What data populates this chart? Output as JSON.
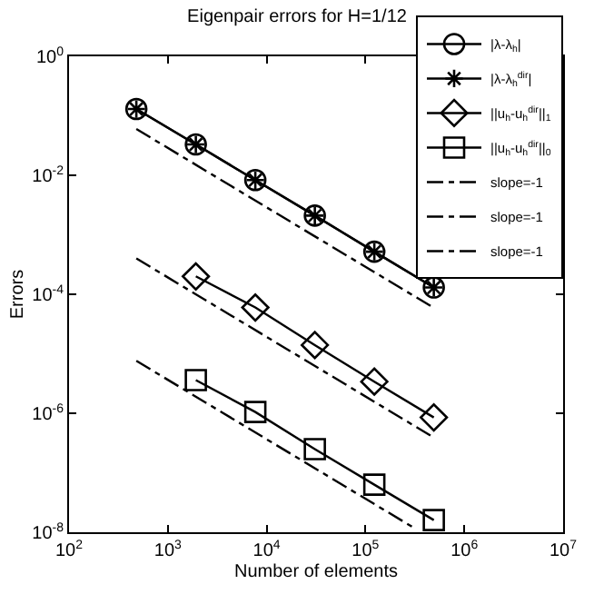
{
  "chart_data": {
    "type": "line",
    "title": "Eigenpair errors for H=1/12",
    "xlabel": "Number of elements",
    "ylabel": "Errors",
    "log": "xy",
    "legend": "top right",
    "xlim": [
      100,
      10000000
    ],
    "ylim": [
      1e-08,
      1
    ],
    "xticks": [
      {
        "value": 100,
        "label": "10$^{2}$"
      },
      {
        "value": 1000,
        "label": "10$^{3}$"
      },
      {
        "value": 10000,
        "label": "10$^{4}$"
      },
      {
        "value": 100000,
        "label": "10$^{5}$"
      },
      {
        "value": 1000000,
        "label": "10$^{6}$"
      },
      {
        "value": 10000000,
        "label": "10$^{7}$"
      }
    ],
    "yticks": [
      {
        "value": 1,
        "label": "10$^{0}$"
      },
      {
        "value": 0.01,
        "label": "10$^{-2}$"
      },
      {
        "value": 0.0001,
        "label": "10$^{-4}$"
      },
      {
        "value": 1e-06,
        "label": "10$^{-6}$"
      },
      {
        "value": 1e-08,
        "label": "10$^{-8}$"
      }
    ],
    "series": [
      {
        "name": "|λ-λ$_{h}$|",
        "color": "#000000",
        "marker": "circle",
        "line_style": "solid",
        "x": [
          480,
          1920,
          7680,
          30720,
          122880,
          491520
        ],
        "values": [
          0.13,
          0.033,
          0.0083,
          0.0021,
          0.00052,
          0.00013
        ]
      },
      {
        "name": "|λ-λ$_{h}$$^{dir}$|",
        "color": "#000000",
        "marker": "cross",
        "line_style": "solid",
        "x": [
          480,
          1920,
          7680,
          30720,
          122880,
          491520
        ],
        "values": [
          0.13,
          0.033,
          0.0083,
          0.0021,
          0.00052,
          0.00013
        ]
      },
      {
        "name": "||u$_{h}$-u$_{h}$$^{dir}$||$_{1}$",
        "color": "#000000",
        "marker": "diamond",
        "line_style": "solid",
        "x": [
          1920,
          7680,
          30720,
          122880,
          491520
        ],
        "values": [
          0.0002,
          6e-05,
          1.4e-05,
          3.4e-06,
          8.5e-07
        ]
      },
      {
        "name": "||u$_{h}$-u$_{h}$$^{dir}$||$_{0}$",
        "color": "#000000",
        "marker": "square",
        "line_style": "solid",
        "x": [
          1920,
          7680,
          30720,
          122880,
          491520
        ],
        "values": [
          3.6e-06,
          1.05e-06,
          2.5e-07,
          6.3e-08,
          1.6e-08
        ]
      },
      {
        "name": "slope=-1",
        "color": "#000000",
        "marker": "none",
        "line_style": "dashdot",
        "x": [
          480,
          491520
        ],
        "values": [
          0.06,
          5.9e-05
        ]
      },
      {
        "name": "slope=-1",
        "color": "#000000",
        "marker": "none",
        "line_style": "dashdot",
        "x": [
          480,
          491520
        ],
        "values": [
          0.0004,
          3.9e-07
        ]
      },
      {
        "name": "slope=-1",
        "color": "#000000",
        "marker": "none",
        "line_style": "dashdot",
        "x": [
          480,
          300000
        ],
        "values": [
          7.6e-06,
          1.22e-08
        ]
      }
    ]
  }
}
